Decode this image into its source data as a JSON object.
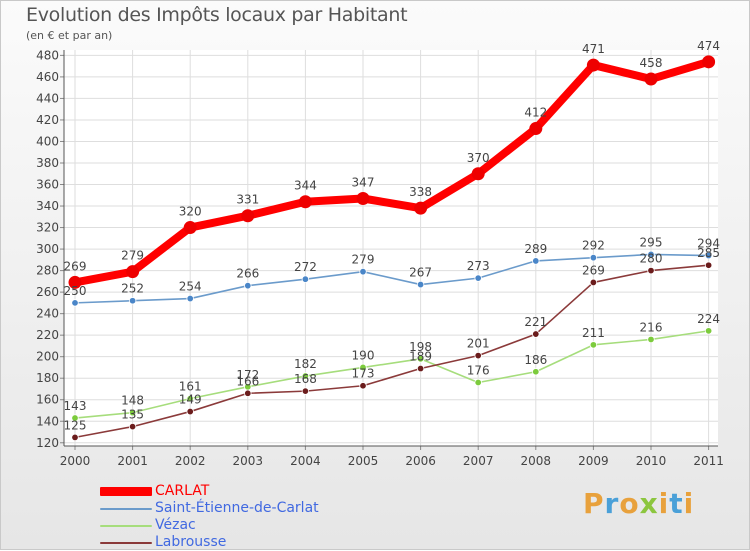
{
  "header": {
    "title": "Evolution des Impôts locaux par Habitant",
    "subtitle": "(en € et par an)"
  },
  "logo": {
    "letters": [
      "P",
      "r",
      "o",
      "x",
      "i",
      "t",
      "i"
    ],
    "colors": [
      "#e8a13c",
      "#4aa0d8",
      "#e8a13c",
      "#8cc63f",
      "#e8a13c",
      "#4aa0d8",
      "#e8a13c"
    ]
  },
  "chart_data": {
    "type": "line",
    "title": "Evolution des Impôts locaux par Habitant",
    "subtitle": "(en € et par an)",
    "xlabel": "",
    "ylabel": "",
    "x": [
      "2000",
      "2001",
      "2002",
      "2003",
      "2004",
      "2005",
      "2006",
      "2007",
      "2008",
      "2009",
      "2010",
      "2011"
    ],
    "yticks": [
      120,
      140,
      160,
      180,
      200,
      220,
      240,
      260,
      280,
      300,
      320,
      340,
      360,
      380,
      400,
      420,
      440,
      460,
      480
    ],
    "ylim": [
      117,
      485
    ],
    "grid": true,
    "legend_position": "bottom-left",
    "series": [
      {
        "name": "CARLAT",
        "color": "#ff0000",
        "legend_color": "#ff0000",
        "dot_color": "#ee0000",
        "values": [
          269,
          279,
          320,
          331,
          344,
          347,
          338,
          370,
          412,
          471,
          458,
          474
        ]
      },
      {
        "name": "Saint-Étienne-de-Carlat",
        "color": "#6b9bcb",
        "legend_color": "#4169e1",
        "dot_color": "#4a86c8",
        "values": [
          250,
          252,
          254,
          266,
          272,
          279,
          267,
          273,
          289,
          292,
          295,
          294
        ]
      },
      {
        "name": "Vézac",
        "color": "#a6dd7c",
        "legend_color": "#4169e1",
        "dot_color": "#7ccb3c",
        "values": [
          143,
          148,
          161,
          172,
          182,
          190,
          198,
          176,
          186,
          211,
          216,
          224
        ]
      },
      {
        "name": "Labrousse",
        "color": "#8b3a3a",
        "legend_color": "#4169e1",
        "dot_color": "#6b1c1c",
        "values": [
          125,
          135,
          149,
          166,
          168,
          173,
          189,
          201,
          221,
          269,
          280,
          285
        ]
      }
    ]
  }
}
